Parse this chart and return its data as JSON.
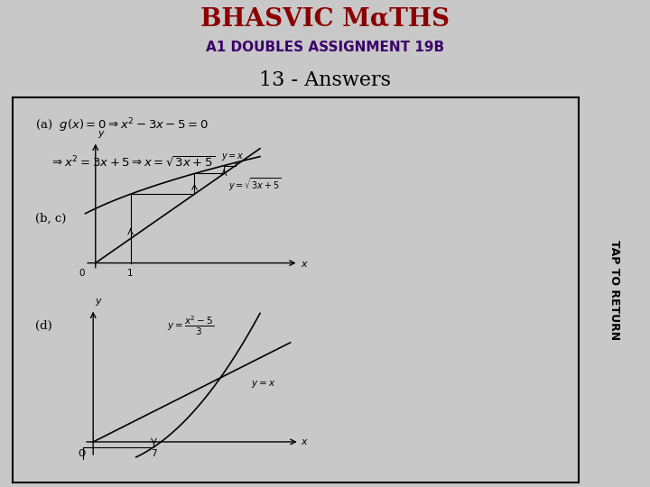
{
  "header_bg": "#FFC000",
  "header_title": "BHASVIC MαTHS",
  "header_subtitle": "A1 DOUBLES ASSIGNMENT 19B",
  "section_title": "13 - Answers",
  "bg_color": "#C8C8C8",
  "content_bg": "#FFFFFF",
  "side_tab_bg": "#FFC000",
  "side_tab_text": "TAP TO RETURN",
  "text_color": "#000000",
  "header_title_color": "#8B0000",
  "header_subtitle_color": "#3B006B"
}
